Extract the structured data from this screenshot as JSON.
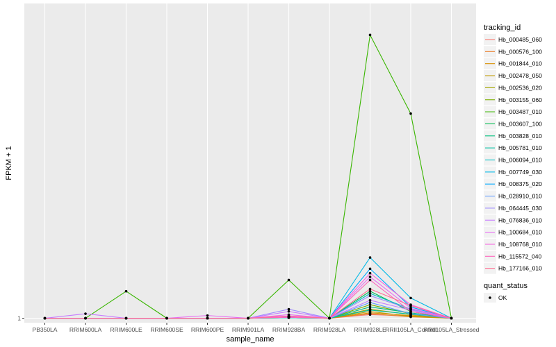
{
  "chart_data": {
    "type": "line",
    "xlabel": "sample_name",
    "ylabel": "FPKM + 1",
    "categories": [
      "PB350LA",
      "RRIM600LA",
      "RRIM600LE",
      "RRIM600SE",
      "RRIM600PE",
      "RRIM901LA",
      "RRIM928BA",
      "RRIM928LA",
      "RRIM928LE",
      "RRII105LA_Control",
      "RRII105LA_Stressed"
    ],
    "y_ticks": [
      1
    ],
    "y_tick_labels": [
      "1"
    ],
    "ylim": [
      0.9,
      8.0
    ],
    "grid": true,
    "legend": {
      "title": "tracking_id",
      "placement": "right",
      "shape_title": "quant_status",
      "shape_entries": [
        "OK"
      ]
    },
    "series": [
      {
        "name": "Hb_000485_060",
        "color": "#F8766D",
        "values": [
          1,
          1,
          1,
          1,
          1,
          1,
          1.05,
          1,
          1.08,
          1.05,
          1
        ]
      },
      {
        "name": "Hb_000576_100",
        "color": "#EA8331",
        "values": [
          1,
          1,
          1,
          1,
          1,
          1,
          1.02,
          1,
          1.1,
          1.03,
          1
        ]
      },
      {
        "name": "Hb_001844_010",
        "color": "#D89000",
        "values": [
          1,
          1,
          1,
          1,
          1,
          1,
          1.03,
          1,
          1.12,
          1.06,
          1
        ]
      },
      {
        "name": "Hb_002478_050",
        "color": "#C09B00",
        "values": [
          1,
          1,
          1,
          1,
          1,
          1,
          1.01,
          1,
          1.15,
          1.04,
          1
        ]
      },
      {
        "name": "Hb_002536_020",
        "color": "#A3A500",
        "values": [
          1,
          1,
          1,
          1,
          1,
          1,
          1.02,
          1,
          1.2,
          1.08,
          1
        ]
      },
      {
        "name": "Hb_003155_060",
        "color": "#7CAE00",
        "values": [
          1,
          1,
          1,
          1,
          1,
          1,
          1.01,
          1,
          1.3,
          1.1,
          1
        ]
      },
      {
        "name": "Hb_003487_010",
        "color": "#39B600",
        "values": [
          1,
          1,
          1.6,
          1,
          1,
          1,
          1.85,
          1,
          7.3,
          5.55,
          1
        ]
      },
      {
        "name": "Hb_003607_100",
        "color": "#00BB4E",
        "values": [
          1,
          1,
          1,
          1,
          1,
          1,
          1.02,
          1,
          1.6,
          1.15,
          1
        ]
      },
      {
        "name": "Hb_003828_010",
        "color": "#00BF7D",
        "values": [
          1,
          1,
          1,
          1,
          1,
          1,
          1.01,
          1,
          1.25,
          1.12,
          1
        ]
      },
      {
        "name": "Hb_005781_010",
        "color": "#00C1A3",
        "values": [
          1,
          1,
          1,
          1,
          1,
          1,
          1.02,
          1,
          1.18,
          1.09,
          1
        ]
      },
      {
        "name": "Hb_006094_010",
        "color": "#00BFC4",
        "values": [
          1,
          1,
          1,
          1,
          1,
          1,
          1.01,
          1,
          1.55,
          1.2,
          1
        ]
      },
      {
        "name": "Hb_007749_030",
        "color": "#00B8E7",
        "values": [
          1,
          1,
          1,
          1,
          1,
          1,
          1.02,
          1,
          2.35,
          1.45,
          1
        ]
      },
      {
        "name": "Hb_008375_020",
        "color": "#00A9FF",
        "values": [
          1,
          1,
          1,
          1,
          1,
          1,
          1.03,
          1,
          2.1,
          1.25,
          1
        ]
      },
      {
        "name": "Hb_028910_010",
        "color": "#619CFF",
        "values": [
          1,
          1,
          1,
          1,
          1,
          1,
          1.04,
          1,
          1.35,
          1.1,
          1
        ]
      },
      {
        "name": "Hb_064445_030",
        "color": "#9F8CFF",
        "values": [
          1,
          1,
          1,
          1,
          1,
          1,
          1.2,
          1,
          1.5,
          1.2,
          1
        ]
      },
      {
        "name": "Hb_076836_010",
        "color": "#C77CFF",
        "values": [
          1,
          1.1,
          1,
          1,
          1,
          1,
          1.15,
          1,
          1.4,
          1.18,
          1
        ]
      },
      {
        "name": "Hb_100684_010",
        "color": "#E76BF3",
        "values": [
          1,
          1,
          1,
          1,
          1.06,
          1,
          1.08,
          1,
          1.92,
          1.22,
          1
        ]
      },
      {
        "name": "Hb_108768_010",
        "color": "#F763E0",
        "values": [
          1,
          1,
          1,
          1,
          1,
          1,
          1.03,
          1,
          2.0,
          1.3,
          1
        ]
      },
      {
        "name": "Hb_115572_040",
        "color": "#FF62BC",
        "values": [
          1,
          1,
          1,
          1,
          1,
          1,
          1.02,
          1,
          1.85,
          1.15,
          1
        ]
      },
      {
        "name": "Hb_177166_010",
        "color": "#FF6C91",
        "values": [
          1,
          1,
          1,
          1,
          1,
          1,
          1.05,
          1,
          1.65,
          1.28,
          1
        ]
      }
    ]
  }
}
